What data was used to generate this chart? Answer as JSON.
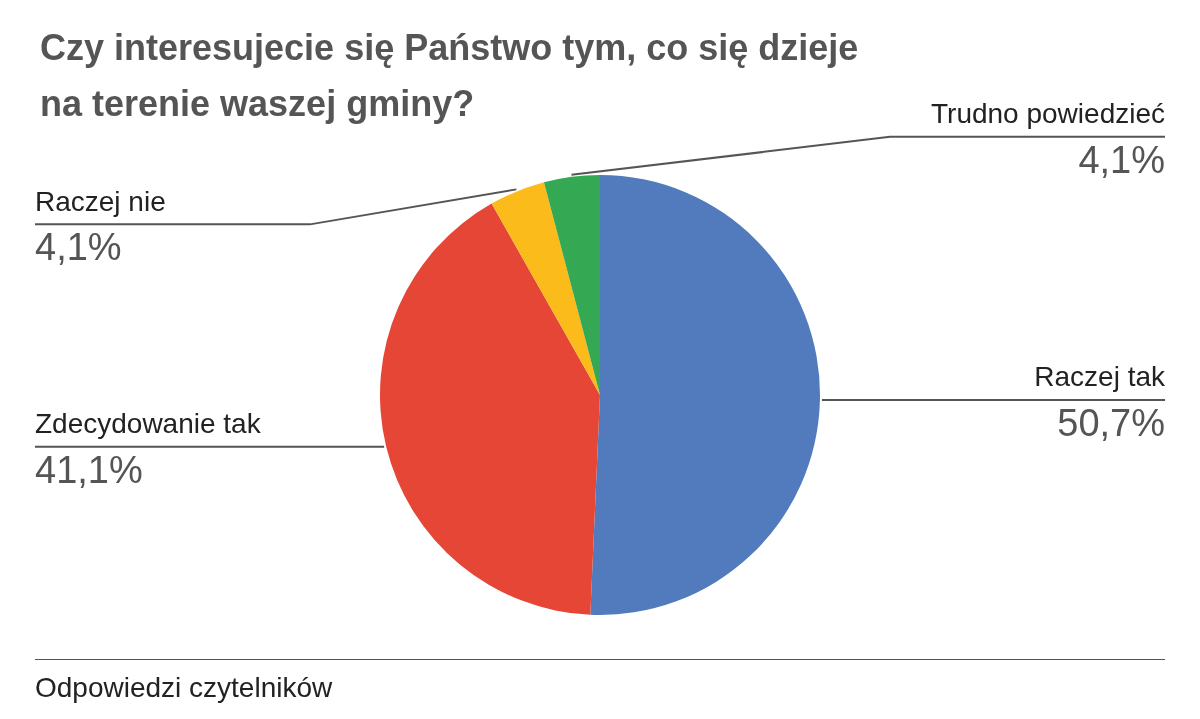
{
  "chart_data": {
    "type": "pie",
    "title": "Czy interesujecie się Państwo tym, co się dzieje na terenie waszej gminy?",
    "categories": [
      "Raczej tak",
      "Zdecydowanie tak",
      "Raczej nie",
      "Trudno powiedzieć"
    ],
    "values": [
      50.7,
      41.1,
      4.1,
      4.1
    ],
    "colors": [
      "#517bbd",
      "#e64636",
      "#fbbc1b",
      "#34a853"
    ],
    "value_labels": [
      "50,7%",
      "41,1%",
      "4,1%",
      "4,1%"
    ],
    "annotations": [
      "Odpowiedzi czytelników"
    ]
  }
}
